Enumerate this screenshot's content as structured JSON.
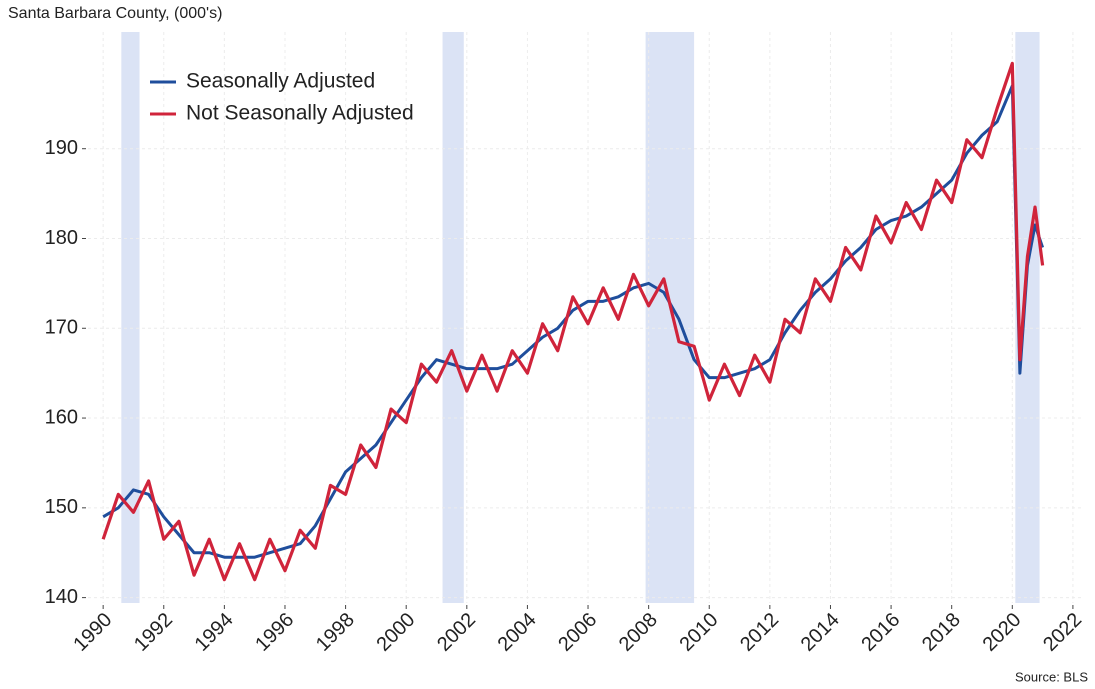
{
  "chart_data": {
    "type": "line",
    "title": "Santa Barbara County, (000's)",
    "source": "Source: BLS",
    "x": [
      1990,
      1990.5,
      1991,
      1991.5,
      1992,
      1992.5,
      1993,
      1993.5,
      1994,
      1994.5,
      1995,
      1995.5,
      1996,
      1996.5,
      1997,
      1997.5,
      1998,
      1998.5,
      1999,
      1999.5,
      2000,
      2000.5,
      2001,
      2001.5,
      2002,
      2002.5,
      2003,
      2003.5,
      2004,
      2004.5,
      2005,
      2005.5,
      2006,
      2006.5,
      2007,
      2007.5,
      2008,
      2008.5,
      2009,
      2009.5,
      2010,
      2010.5,
      2011,
      2011.5,
      2012,
      2012.5,
      2013,
      2013.5,
      2014,
      2014.5,
      2015,
      2015.5,
      2016,
      2016.5,
      2017,
      2017.5,
      2018,
      2018.5,
      2019,
      2019.5,
      2020,
      2020.25,
      2020.5,
      2020.75,
      2021
    ],
    "series": [
      {
        "name": "Seasonally Adjusted",
        "color": "#1f4e9c",
        "values": [
          149,
          150,
          152,
          151.5,
          149,
          147,
          145,
          145,
          144.5,
          144.5,
          144.5,
          145,
          145.5,
          146,
          148,
          151,
          154,
          155.5,
          157,
          159.5,
          162,
          164.5,
          166.5,
          166,
          165.5,
          165.5,
          165.5,
          166,
          167.5,
          169,
          170,
          172,
          173,
          173,
          173.5,
          174.5,
          175,
          174,
          171,
          166.5,
          164.5,
          164.5,
          165,
          165.5,
          166.5,
          169.5,
          172,
          174,
          175.5,
          177.5,
          179,
          181,
          182,
          182.5,
          183.5,
          185,
          186.5,
          189.5,
          191.5,
          193,
          197,
          165,
          177,
          181.5,
          179
        ]
      },
      {
        "name": "Not Seasonally Adjusted",
        "color": "#d0243b",
        "values": [
          146.5,
          151.5,
          149.5,
          153,
          146.5,
          148.5,
          142.5,
          146.5,
          142,
          146,
          142,
          146.5,
          143,
          147.5,
          145.5,
          152.5,
          151.5,
          157,
          154.5,
          161,
          159.5,
          166,
          164,
          167.5,
          163,
          167,
          163,
          167.5,
          165,
          170.5,
          167.5,
          173.5,
          170.5,
          174.5,
          171,
          176,
          172.5,
          175.5,
          168.5,
          168,
          162,
          166,
          162.5,
          167,
          164,
          171,
          169.5,
          175.5,
          173,
          179,
          176.5,
          182.5,
          179.5,
          184,
          181,
          186.5,
          184,
          191,
          189,
          194.5,
          199.5,
          166.5,
          178,
          183.5,
          177
        ]
      }
    ],
    "recessions": [
      [
        1990.6,
        1991.2
      ],
      [
        2001.2,
        2001.9
      ],
      [
        2007.9,
        2009.5
      ],
      [
        2020.1,
        2020.9
      ]
    ],
    "recession_color": "#dbe3f5",
    "xlim": [
      1989.5,
      2022.3
    ],
    "xticks": [
      1990,
      1992,
      1994,
      1996,
      1998,
      2000,
      2002,
      2004,
      2006,
      2008,
      2010,
      2012,
      2014,
      2016,
      2018,
      2020,
      2022
    ],
    "ylim": [
      139.4,
      203
    ],
    "yticks": [
      140,
      150,
      160,
      170,
      180,
      190
    ],
    "grid": true
  }
}
